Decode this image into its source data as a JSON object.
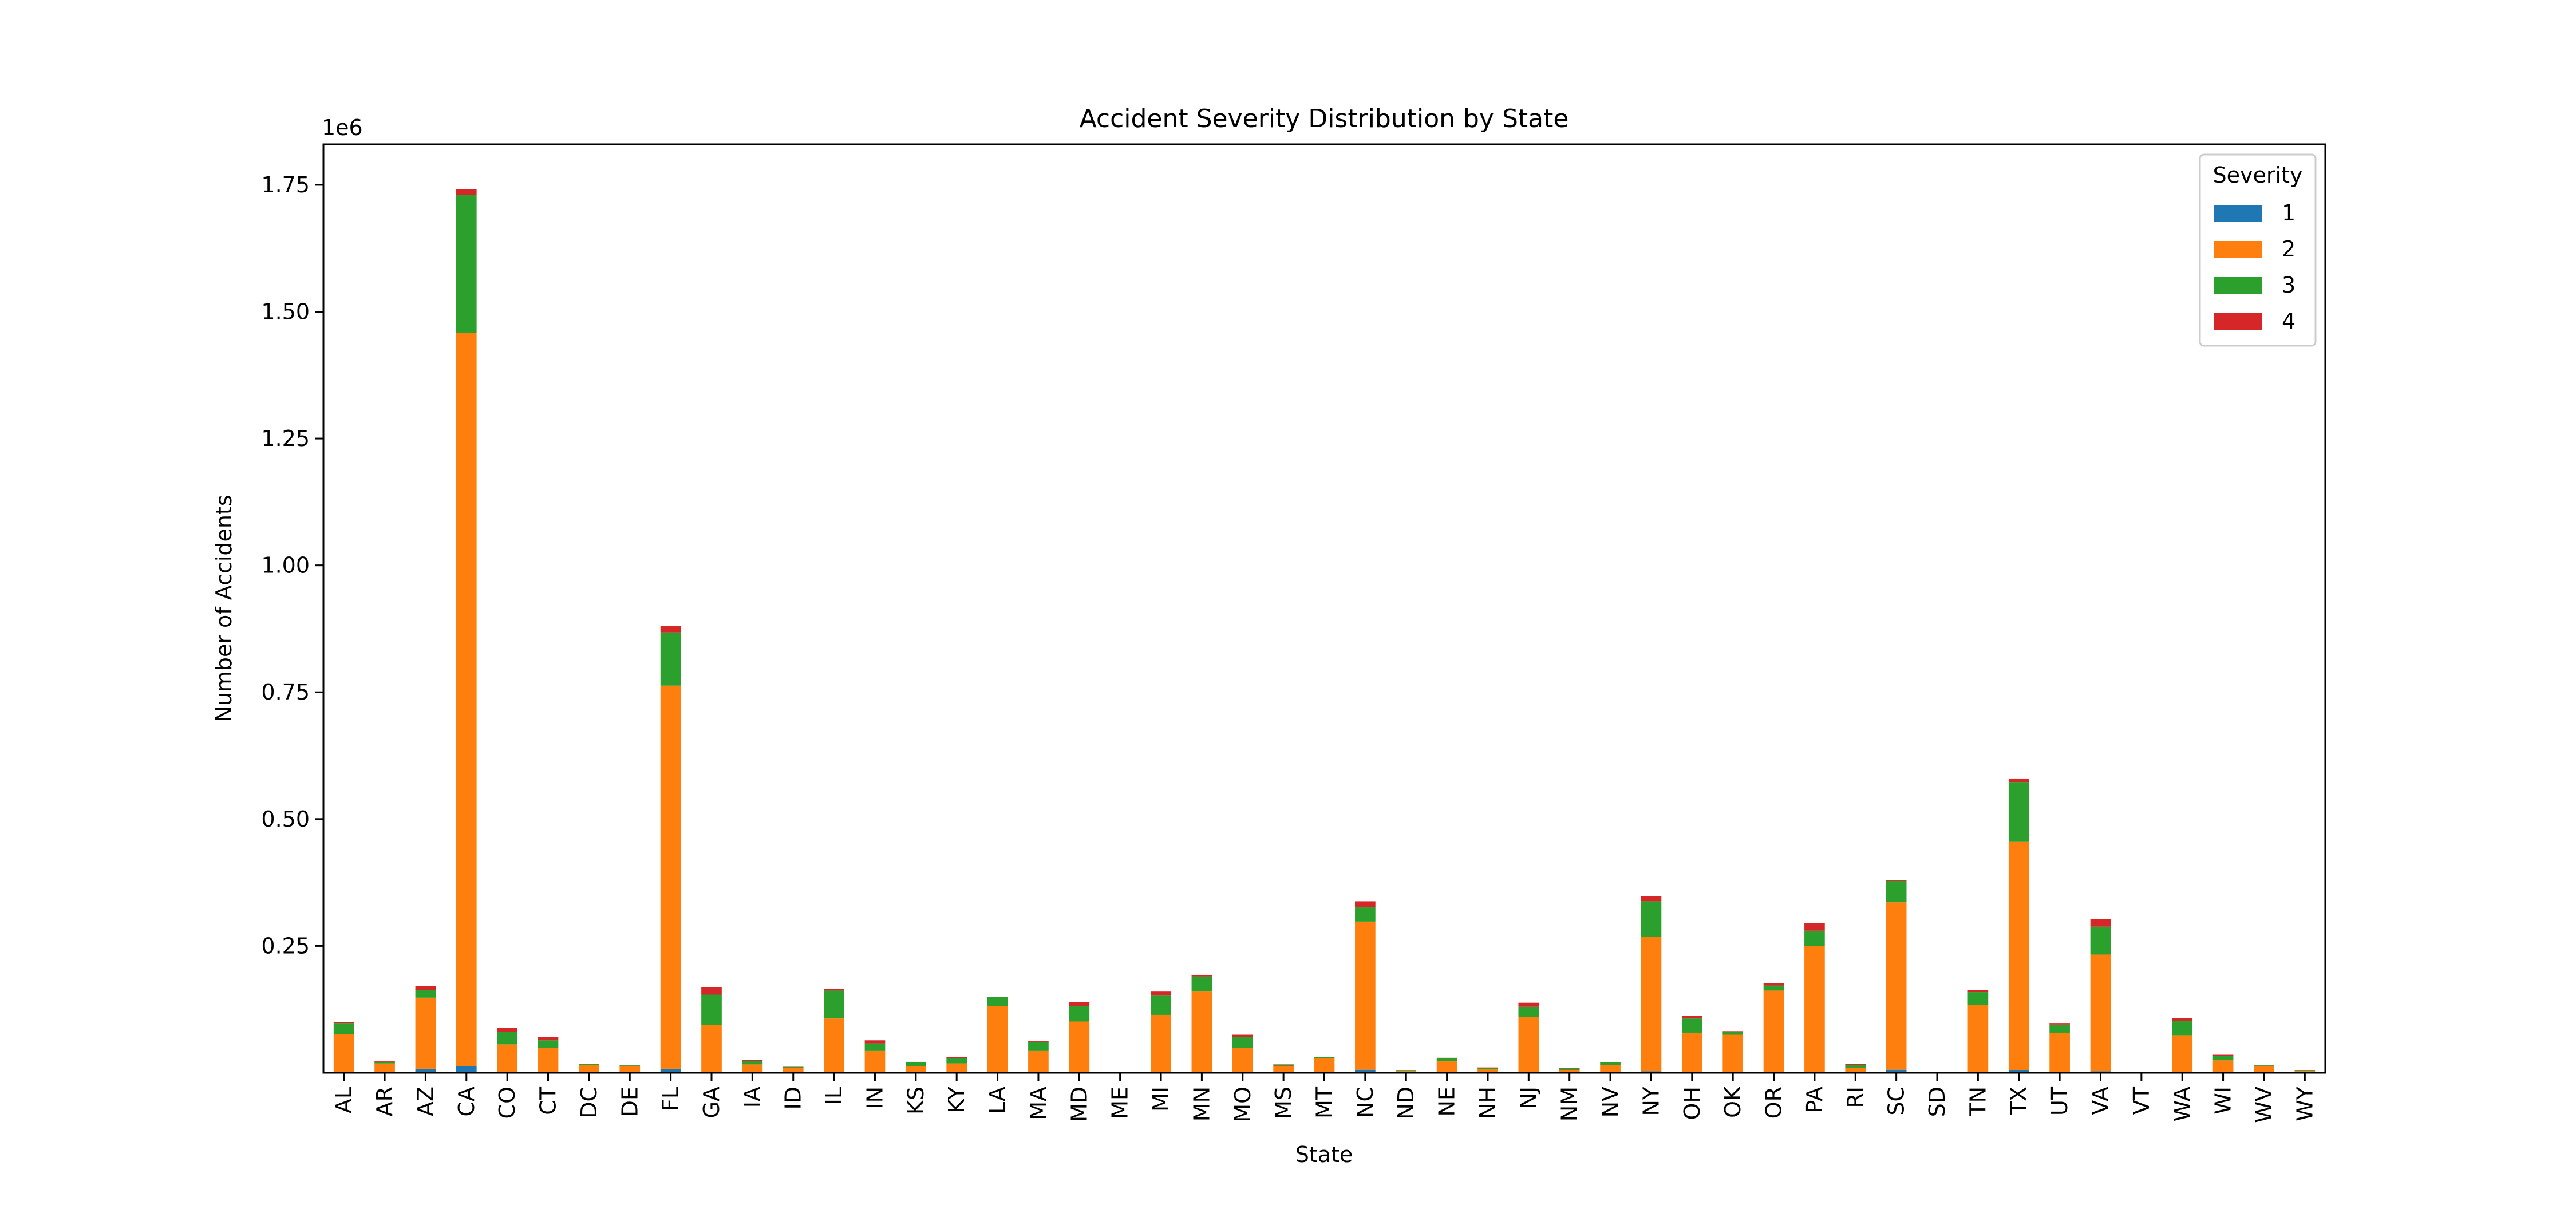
{
  "chart_data": {
    "type": "bar",
    "stacked": true,
    "title": "Accident Severity Distribution by State",
    "xlabel": "State",
    "ylabel": "Number of Accidents",
    "y_offset_text": "1e6",
    "ylim": [
      0,
      1.83
    ],
    "yticks": [
      0.25,
      0.5,
      0.75,
      1.0,
      1.25,
      1.5,
      1.75
    ],
    "ytick_labels": [
      "0.25",
      "0.50",
      "0.75",
      "1.00",
      "1.25",
      "1.50",
      "1.75"
    ],
    "legend": {
      "title": "Severity",
      "placement": "top-right"
    },
    "grid": false,
    "categories": [
      "AL",
      "AR",
      "AZ",
      "CA",
      "CO",
      "CT",
      "DC",
      "DE",
      "FL",
      "GA",
      "IA",
      "ID",
      "IL",
      "IN",
      "KS",
      "KY",
      "LA",
      "MA",
      "MD",
      "ME",
      "MI",
      "MN",
      "MO",
      "MS",
      "MT",
      "NC",
      "ND",
      "NE",
      "NH",
      "NJ",
      "NM",
      "NV",
      "NY",
      "OH",
      "OK",
      "OR",
      "PA",
      "RI",
      "SC",
      "SD",
      "TN",
      "TX",
      "UT",
      "VA",
      "VT",
      "WA",
      "WI",
      "WV",
      "WY"
    ],
    "series": [
      {
        "name": "1",
        "color": "#1f77b4",
        "values": [
          0.001,
          0.0005,
          0.008,
          0.013,
          0.001,
          0.001,
          0.0005,
          0.0005,
          0.008,
          0.002,
          0.0005,
          0.0005,
          0.002,
          0.001,
          0.0005,
          0.0005,
          0.001,
          0.001,
          0.001,
          0.0002,
          0.002,
          0.002,
          0.001,
          0.0005,
          0.0005,
          0.006,
          0.0002,
          0.0005,
          0.0005,
          0.002,
          0.0005,
          0.0005,
          0.003,
          0.001,
          0.001,
          0.002,
          0.002,
          0.0005,
          0.006,
          0.0002,
          0.002,
          0.005,
          0.001,
          0.003,
          0.0001,
          0.002,
          0.0005,
          0.0005,
          0.0002
        ]
      },
      {
        "name": "2",
        "color": "#ff7f0e",
        "values": [
          0.075,
          0.018,
          0.14,
          1.445,
          0.055,
          0.048,
          0.015,
          0.012,
          0.755,
          0.092,
          0.016,
          0.009,
          0.105,
          0.042,
          0.012,
          0.018,
          0.13,
          0.042,
          0.1,
          0.001,
          0.112,
          0.158,
          0.048,
          0.012,
          0.028,
          0.292,
          0.003,
          0.022,
          0.007,
          0.108,
          0.005,
          0.015,
          0.265,
          0.078,
          0.074,
          0.16,
          0.248,
          0.009,
          0.33,
          0.001,
          0.132,
          0.45,
          0.078,
          0.23,
          0.0005,
          0.072,
          0.024,
          0.012,
          0.003
        ]
      },
      {
        "name": "3",
        "color": "#2ca02c",
        "values": [
          0.022,
          0.003,
          0.015,
          0.272,
          0.025,
          0.015,
          0.0015,
          0.002,
          0.105,
          0.06,
          0.007,
          0.002,
          0.055,
          0.015,
          0.008,
          0.01,
          0.018,
          0.017,
          0.03,
          0.0005,
          0.038,
          0.03,
          0.022,
          0.003,
          0.002,
          0.028,
          0.001,
          0.006,
          0.002,
          0.02,
          0.003,
          0.005,
          0.07,
          0.028,
          0.006,
          0.01,
          0.03,
          0.006,
          0.042,
          0.0005,
          0.025,
          0.118,
          0.016,
          0.055,
          0.0003,
          0.028,
          0.009,
          0.002,
          0.001
        ]
      },
      {
        "name": "4",
        "color": "#d62728",
        "values": [
          0.002,
          0.001,
          0.008,
          0.012,
          0.007,
          0.006,
          0.0005,
          0.0005,
          0.012,
          0.015,
          0.002,
          0.0005,
          0.003,
          0.006,
          0.001,
          0.002,
          0.001,
          0.002,
          0.008,
          0.0002,
          0.008,
          0.003,
          0.004,
          0.001,
          0.001,
          0.012,
          0.0002,
          0.001,
          0.001,
          0.008,
          0.0005,
          0.0005,
          0.01,
          0.005,
          0.001,
          0.005,
          0.015,
          0.002,
          0.002,
          0.0001,
          0.004,
          0.007,
          0.003,
          0.015,
          0.0001,
          0.006,
          0.002,
          0.0005,
          0.0005
        ]
      }
    ]
  }
}
